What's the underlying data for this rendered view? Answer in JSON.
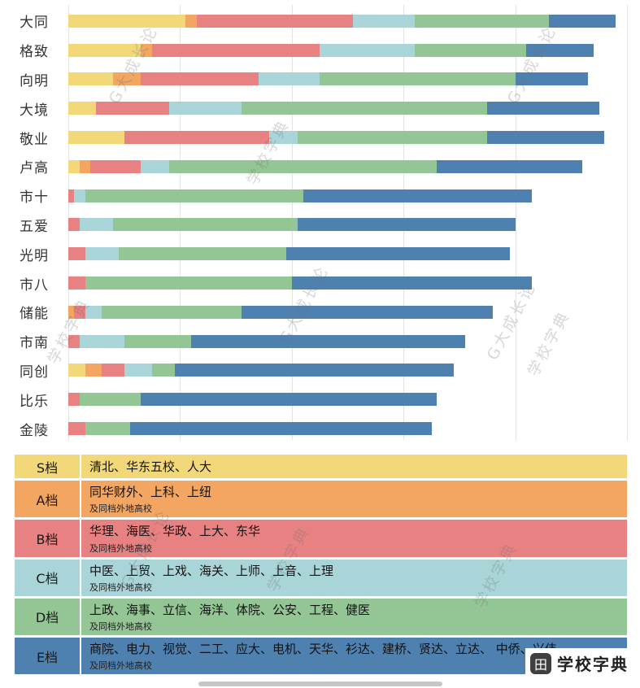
{
  "chart_data": {
    "type": "bar",
    "stacked": true,
    "orientation": "horizontal",
    "title": "",
    "xlabel": "",
    "ylabel": "",
    "xlim": [
      0,
      100
    ],
    "gridlines_pct": [
      0,
      20,
      40,
      60,
      80,
      100
    ],
    "categories": [
      "大同",
      "格致",
      "向明",
      "大境",
      "敬业",
      "卢高",
      "市十",
      "五爱",
      "光明",
      "市八",
      "储能",
      "市南",
      "同创",
      "比乐",
      "金陵"
    ],
    "series": [
      {
        "name": "S档",
        "color": "#F2D879",
        "values": [
          21,
          13,
          8,
          5,
          10,
          2,
          0,
          0,
          0,
          0,
          0,
          0,
          3,
          0,
          0
        ]
      },
      {
        "name": "A档",
        "color": "#F2A661",
        "values": [
          2,
          2,
          5,
          0,
          0,
          2,
          0,
          0,
          0,
          0,
          1,
          0,
          3,
          0,
          0
        ]
      },
      {
        "name": "B档",
        "color": "#E88181",
        "values": [
          28,
          30,
          21,
          13,
          26,
          9,
          1,
          2,
          3,
          3,
          2,
          2,
          4,
          2,
          3
        ]
      },
      {
        "name": "C档",
        "color": "#A9D4D8",
        "values": [
          11,
          17,
          11,
          13,
          5,
          5,
          2,
          6,
          6,
          0,
          3,
          8,
          5,
          0,
          0
        ]
      },
      {
        "name": "D档",
        "color": "#94C594",
        "values": [
          24,
          20,
          35,
          44,
          34,
          48,
          39,
          33,
          30,
          37,
          25,
          12,
          4,
          11,
          8
        ]
      },
      {
        "name": "E档",
        "color": "#4E81B0",
        "values": [
          12,
          12,
          13,
          20,
          21,
          26,
          41,
          39,
          40,
          43,
          45,
          49,
          50,
          53,
          54
        ]
      }
    ]
  },
  "legend": {
    "rows": [
      {
        "tier": "S档",
        "color": "#F2D879",
        "schools": "清北、华东五校、人大",
        "note": ""
      },
      {
        "tier": "A档",
        "color": "#F2A661",
        "schools": "同华财外、上科、上纽",
        "note": "及同档外地高校"
      },
      {
        "tier": "B档",
        "color": "#E88181",
        "schools": "华理、海医、华政、上大、东华",
        "note": "及同档外地高校"
      },
      {
        "tier": "C档",
        "color": "#A9D4D8",
        "schools": "中医、上贸、上戏、海关、上师、上音、上理",
        "note": "及同档外地高校"
      },
      {
        "tier": "D档",
        "color": "#94C594",
        "schools": "上政、海事、立信、海洋、体院、公安、工程、健医",
        "note": "及同档外地高校"
      },
      {
        "tier": "E档",
        "color": "#4E81B0",
        "schools": "商院、电力、视觉、二工、应大、电机、天华、衫达、建桥、贤达、立达、 中侨、兴伟",
        "note": "及同档外地高校"
      }
    ]
  },
  "watermarks": {
    "brand_a": "G大成长论",
    "brand_b": "学校字典"
  },
  "brand": {
    "logo_glyph": "田",
    "name": "学校字典"
  }
}
